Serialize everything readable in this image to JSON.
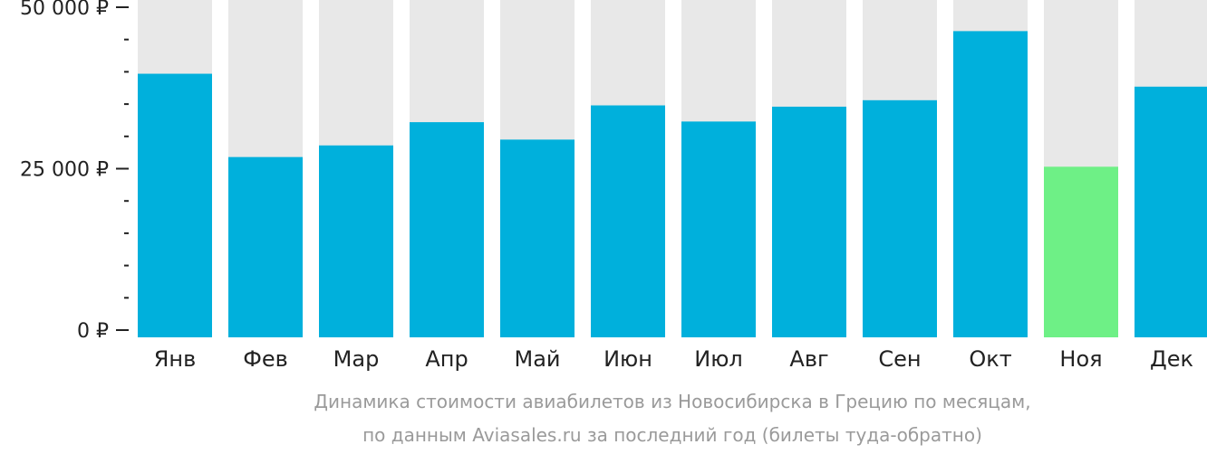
{
  "chart_data": {
    "type": "bar",
    "categories": [
      "Янв",
      "Фев",
      "Мар",
      "Апр",
      "Май",
      "Июн",
      "Июл",
      "Авг",
      "Сен",
      "Окт",
      "Ноя",
      "Дек"
    ],
    "values": [
      39700,
      26800,
      28600,
      32200,
      29500,
      34800,
      32300,
      34600,
      35600,
      46300,
      25300,
      37700
    ],
    "ylim": [
      0,
      52000
    ],
    "y_ticks": [
      {
        "value": 0,
        "label": "0 ₽"
      },
      {
        "value": 25000,
        "label": "25 000 ₽"
      },
      {
        "value": 50000,
        "label": "50 000 ₽"
      }
    ],
    "y_minor_step": 5000,
    "caption_lines": [
      "Динамика стоимости авиабилетов из Новосибирска в Грецию по месяцам,",
      "по данным Aviasales.ru за последний год (билеты туда-обратно)"
    ],
    "highlight_index": 10,
    "grid": false,
    "legend": "none"
  },
  "colors": {
    "bar": "#00b0dc",
    "bar_highlight": "#6ef086",
    "bar_background": "#e8e8e8",
    "axis": "#222222",
    "caption": "#9a9a9a"
  }
}
